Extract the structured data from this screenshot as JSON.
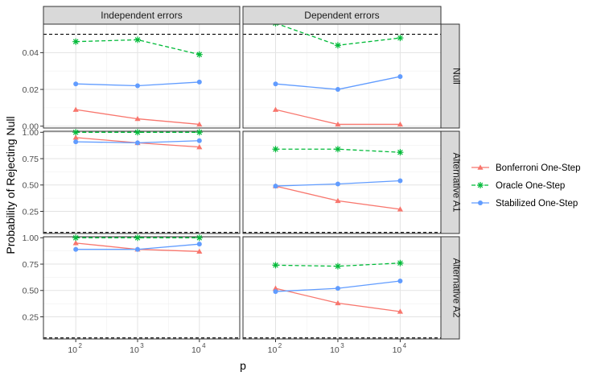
{
  "chart_data": {
    "type": "line",
    "xlabel": "p",
    "ylabel": "Probability of Rejecting Null",
    "x_ticks": [
      {
        "x": 100,
        "base": "10",
        "exp": "2"
      },
      {
        "x": 1000,
        "base": "10",
        "exp": "3"
      },
      {
        "x": 10000,
        "base": "10",
        "exp": "4"
      }
    ],
    "x_scale": "log10",
    "xlim": [
      30,
      45000
    ],
    "column_facets": [
      "Independent errors",
      "Dependent errors"
    ],
    "row_facets": [
      {
        "label": "Null",
        "ylim": [
          -0.001,
          0.0555
        ],
        "y_ticks": [
          "0.00",
          "0.02",
          "0.04"
        ],
        "y_tick_values": [
          0,
          0.02,
          0.04
        ]
      },
      {
        "label": "Alternative A1",
        "ylim": [
          0.04,
          1.01
        ],
        "y_ticks": [
          "0.25",
          "0.50",
          "0.75",
          "1.00"
        ],
        "y_tick_values": [
          0.25,
          0.5,
          0.75,
          1.0
        ]
      },
      {
        "label": "Alternative A2",
        "ylim": [
          0.04,
          1.01
        ],
        "y_ticks": [
          "0.25",
          "0.50",
          "0.75",
          "1.00"
        ],
        "y_tick_values": [
          0.25,
          0.5,
          0.75,
          1.0
        ]
      }
    ],
    "reference_line": 0.05,
    "grid": true,
    "legend_position": "right",
    "series": [
      {
        "name": "Bonferroni One-Step",
        "color": "#F8766D",
        "marker": "triangle",
        "dash": "solid"
      },
      {
        "name": "Oracle One-Step",
        "color": "#00BA38",
        "marker": "asterisk",
        "dash": "dashed"
      },
      {
        "name": "Stabilized One-Step",
        "color": "#619CFF",
        "marker": "circle",
        "dash": "solid"
      }
    ],
    "panels": [
      {
        "row": 0,
        "col": 0,
        "values": {
          "Bonferroni One-Step": [
            0.009,
            0.004,
            0.001
          ],
          "Oracle One-Step": [
            0.046,
            0.047,
            0.039
          ],
          "Stabilized One-Step": [
            0.023,
            0.022,
            0.024
          ]
        }
      },
      {
        "row": 0,
        "col": 1,
        "values": {
          "Bonferroni One-Step": [
            0.009,
            0.001,
            0.001
          ],
          "Oracle One-Step": [
            0.056,
            0.044,
            0.048
          ],
          "Stabilized One-Step": [
            0.023,
            0.02,
            0.027
          ]
        }
      },
      {
        "row": 1,
        "col": 0,
        "values": {
          "Bonferroni One-Step": [
            0.95,
            0.9,
            0.86
          ],
          "Oracle One-Step": [
            1.0,
            1.0,
            1.0
          ],
          "Stabilized One-Step": [
            0.91,
            0.9,
            0.92
          ]
        }
      },
      {
        "row": 1,
        "col": 1,
        "values": {
          "Bonferroni One-Step": [
            0.49,
            0.35,
            0.27
          ],
          "Oracle One-Step": [
            0.84,
            0.84,
            0.81
          ],
          "Stabilized One-Step": [
            0.49,
            0.51,
            0.54
          ]
        }
      },
      {
        "row": 2,
        "col": 0,
        "values": {
          "Bonferroni One-Step": [
            0.95,
            0.89,
            0.87
          ],
          "Oracle One-Step": [
            1.0,
            1.0,
            1.0
          ],
          "Stabilized One-Step": [
            0.89,
            0.89,
            0.94
          ]
        }
      },
      {
        "row": 2,
        "col": 1,
        "values": {
          "Bonferroni One-Step": [
            0.52,
            0.38,
            0.3
          ],
          "Oracle One-Step": [
            0.74,
            0.73,
            0.76
          ],
          "Stabilized One-Step": [
            0.49,
            0.52,
            0.59
          ]
        }
      }
    ]
  }
}
